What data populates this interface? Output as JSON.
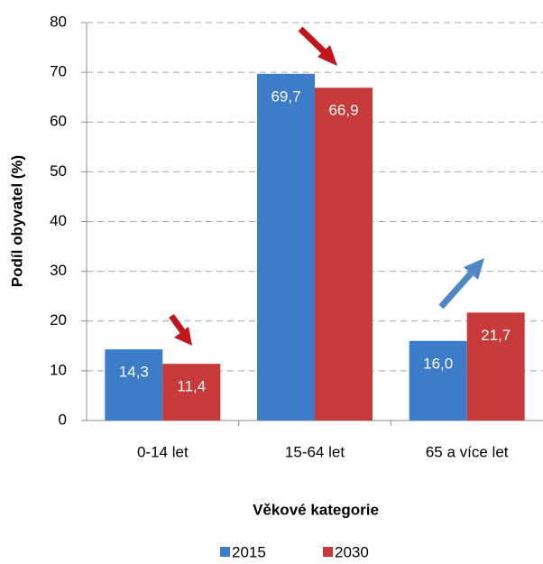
{
  "chart_data": {
    "type": "bar",
    "categories": [
      "0-14 let",
      "15-64 let",
      "65 a více let"
    ],
    "series": [
      {
        "name": "2015",
        "color": "#3d7cc9",
        "values": [
          14.3,
          69.7,
          16.0
        ],
        "value_labels": [
          "14,3",
          "69,7",
          "16,0"
        ]
      },
      {
        "name": "2030",
        "color": "#c83a3a",
        "values": [
          11.4,
          66.9,
          21.7
        ],
        "value_labels": [
          "11,4",
          "66,9",
          "21,7"
        ]
      }
    ],
    "ylim": [
      0,
      80
    ],
    "yticks": [
      0,
      10,
      20,
      30,
      40,
      50,
      60,
      70,
      80
    ],
    "grid": true,
    "ylabel": "Podíl obyvatel (%)",
    "xlabel": "Věkové kategorie",
    "legend": "bottom"
  }
}
